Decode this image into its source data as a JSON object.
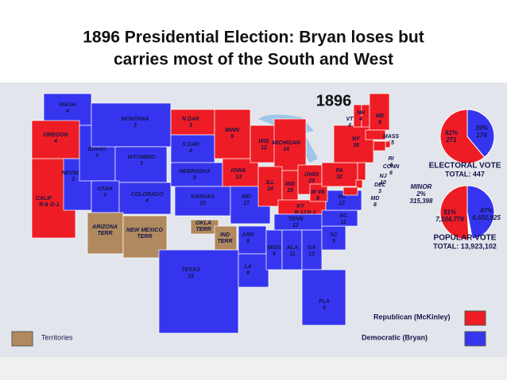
{
  "title_lines": [
    "1896 Presidential Election:  Bryan loses but",
    "carries most of the South and West"
  ],
  "map_title": "1896",
  "party_colors": {
    "R": "#ee1c24",
    "D": "#3535f0",
    "T": "#b08a5e",
    "M": "#ffffff"
  },
  "states": [
    {
      "name": "WASH",
      "votes": 4,
      "party": "D"
    },
    {
      "name": "OREGON",
      "votes": 4,
      "party": "R"
    },
    {
      "name": "CALIF",
      "votes": "R-8",
      "split": "D-1",
      "party": "R"
    },
    {
      "name": "NEVADA",
      "votes": 3,
      "party": "D"
    },
    {
      "name": "IDAHO",
      "votes": 3,
      "party": "D"
    },
    {
      "name": "MONTANA",
      "votes": 3,
      "party": "D"
    },
    {
      "name": "WYOMING",
      "votes": 3,
      "party": "D"
    },
    {
      "name": "UTAH",
      "votes": 3,
      "party": "D"
    },
    {
      "name": "COLORADO",
      "votes": 4,
      "party": "D"
    },
    {
      "name": "ARIZONA",
      "votes": "TERR",
      "party": "T"
    },
    {
      "name": "NEW MEXICO",
      "votes": "TERR",
      "party": "T"
    },
    {
      "name": "N DAK",
      "votes": 3,
      "party": "R"
    },
    {
      "name": "S DAK",
      "votes": 4,
      "party": "D"
    },
    {
      "name": "NEBRASKA",
      "votes": 8,
      "party": "D"
    },
    {
      "name": "KANSAS",
      "votes": 10,
      "party": "D"
    },
    {
      "name": "OKLA",
      "votes": "TERR",
      "party": "T"
    },
    {
      "name": "IND",
      "votes": "TERR",
      "party": "T"
    },
    {
      "name": "TEXAS",
      "votes": 15,
      "party": "D"
    },
    {
      "name": "MINN",
      "votes": 9,
      "party": "R"
    },
    {
      "name": "IOWA",
      "votes": 13,
      "party": "R"
    },
    {
      "name": "MO",
      "votes": 17,
      "party": "D"
    },
    {
      "name": "ARK",
      "votes": 8,
      "party": "D"
    },
    {
      "name": "LA",
      "votes": 8,
      "party": "D"
    },
    {
      "name": "WIS",
      "votes": 12,
      "party": "R"
    },
    {
      "name": "MICHIGAN",
      "votes": 14,
      "party": "R"
    },
    {
      "name": "ILL",
      "votes": 24,
      "party": "R"
    },
    {
      "name": "IND",
      "votes": 15,
      "party": "R"
    },
    {
      "name": "OHIO",
      "votes": 23,
      "party": "R"
    },
    {
      "name": "KY",
      "votes": "R-12",
      "split": "D-1",
      "party": "R"
    },
    {
      "name": "TENN",
      "votes": 12,
      "party": "D"
    },
    {
      "name": "MISS",
      "votes": 9,
      "party": "D"
    },
    {
      "name": "ALA",
      "votes": 11,
      "party": "D"
    },
    {
      "name": "GA",
      "votes": 13,
      "party": "D"
    },
    {
      "name": "FLA",
      "votes": 4,
      "party": "D"
    },
    {
      "name": "SC",
      "votes": 9,
      "party": "D"
    },
    {
      "name": "NC",
      "votes": 11,
      "party": "D"
    },
    {
      "name": "VA",
      "votes": 12,
      "party": "D"
    },
    {
      "name": "W VA",
      "votes": 6,
      "party": "R"
    },
    {
      "name": "PA",
      "votes": 32,
      "party": "R"
    },
    {
      "name": "NY",
      "votes": 36,
      "party": "R"
    },
    {
      "name": "VT",
      "votes": 4,
      "party": "R"
    },
    {
      "name": "NH",
      "votes": 4,
      "party": "R"
    },
    {
      "name": "ME",
      "votes": 6,
      "party": "R"
    },
    {
      "name": "MASS",
      "votes": 15,
      "party": "R"
    },
    {
      "name": "RI",
      "votes": 4,
      "party": "R"
    },
    {
      "name": "CONN",
      "votes": 6,
      "party": "R"
    },
    {
      "name": "NJ",
      "votes": 10,
      "party": "R"
    },
    {
      "name": "DEL",
      "votes": 3,
      "party": "R"
    },
    {
      "name": "MD",
      "votes": 8,
      "party": "R"
    }
  ],
  "electoral": {
    "heading": "ELECTORAL VOTE",
    "total": "TOTAL: 447",
    "slices": [
      {
        "party": "R",
        "percent": 61,
        "label": "61%",
        "votes": "271"
      },
      {
        "party": "D",
        "percent": 39,
        "label": "39%",
        "votes": "176"
      }
    ]
  },
  "popular": {
    "heading": "POPULAR VOTE",
    "total": "TOTAL: 13,923,102",
    "slices": [
      {
        "party": "R",
        "percent": 51,
        "label": "51%",
        "votes": "7,104,779"
      },
      {
        "party": "D",
        "percent": 47,
        "label": "47%",
        "votes": "6,502,925"
      },
      {
        "party": "M",
        "name": "MINOR",
        "percent": 2,
        "label": "2%",
        "votes": "315,398"
      }
    ]
  },
  "legend": [
    {
      "party": "R",
      "label": "Republican (McKinley)"
    },
    {
      "party": "D",
      "label": "Democratic (Bryan)"
    },
    {
      "party": "T",
      "label": "Territories"
    }
  ]
}
